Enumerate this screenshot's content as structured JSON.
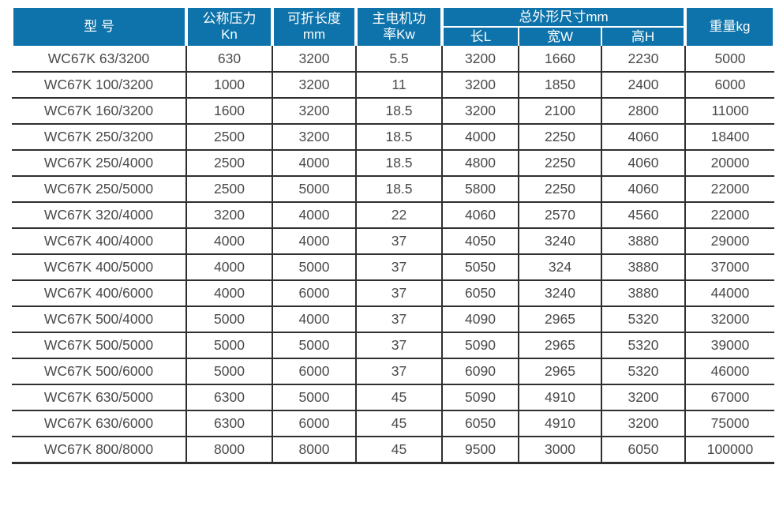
{
  "colors": {
    "header_bg": "#0e73aa",
    "header_text": "#ffffff",
    "body_text": "#4a4a4a",
    "grid_line": "#2f2f2f"
  },
  "table": {
    "header": {
      "model": "型 号",
      "pressure_line1": "公称压力",
      "pressure_line2": "Kn",
      "fold_length_line1": "可折长度",
      "fold_length_line2": "mm",
      "motor_power_line1": "主电机功",
      "motor_power_line2": "率Kw",
      "dimensions_group": "总外形尺寸mm",
      "dim_length": "长L",
      "dim_width": "宽W",
      "dim_height": "高H",
      "weight": "重量kg"
    },
    "column_names": [
      "model",
      "pressure",
      "fold-length",
      "motor-power",
      "dim-length",
      "dim-width",
      "dim-height",
      "weight"
    ],
    "rows": [
      [
        "WC67K 63/3200",
        "630",
        "3200",
        "5.5",
        "3200",
        "1660",
        "2230",
        "5000"
      ],
      [
        "WC67K 100/3200",
        "1000",
        "3200",
        "11",
        "3200",
        "1850",
        "2400",
        "6000"
      ],
      [
        "WC67K 160/3200",
        "1600",
        "3200",
        "18.5",
        "3200",
        "2100",
        "2800",
        "11000"
      ],
      [
        "WC67K 250/3200",
        "2500",
        "3200",
        "18.5",
        "4000",
        "2250",
        "4060",
        "18400"
      ],
      [
        "WC67K 250/4000",
        "2500",
        "4000",
        "18.5",
        "4800",
        "2250",
        "4060",
        "20000"
      ],
      [
        "WC67K 250/5000",
        "2500",
        "5000",
        "18.5",
        "5800",
        "2250",
        "4060",
        "22000"
      ],
      [
        "WC67K 320/4000",
        "3200",
        "4000",
        "22",
        "4060",
        "2570",
        "4560",
        "22000"
      ],
      [
        "WC67K 400/4000",
        "4000",
        "4000",
        "37",
        "4050",
        "3240",
        "3880",
        "29000"
      ],
      [
        "WC67K 400/5000",
        "4000",
        "5000",
        "37",
        "5050",
        "324",
        "3880",
        "37000"
      ],
      [
        "WC67K 400/6000",
        "4000",
        "6000",
        "37",
        "6050",
        "3240",
        "3880",
        "44000"
      ],
      [
        "WC67K 500/4000",
        "5000",
        "4000",
        "37",
        "4090",
        "2965",
        "5320",
        "32000"
      ],
      [
        "WC67K 500/5000",
        "5000",
        "5000",
        "37",
        "5090",
        "2965",
        "5320",
        "39000"
      ],
      [
        "WC67K 500/6000",
        "5000",
        "6000",
        "37",
        "6090",
        "2965",
        "5320",
        "46000"
      ],
      [
        "WC67K 630/5000",
        "6300",
        "5000",
        "45",
        "5090",
        "4910",
        "3200",
        "67000"
      ],
      [
        "WC67K 630/6000",
        "6300",
        "6000",
        "45",
        "6050",
        "4910",
        "3200",
        "75000"
      ],
      [
        "WC67K 800/8000",
        "8000",
        "8000",
        "45",
        "9500",
        "3000",
        "6050",
        "100000"
      ]
    ]
  }
}
